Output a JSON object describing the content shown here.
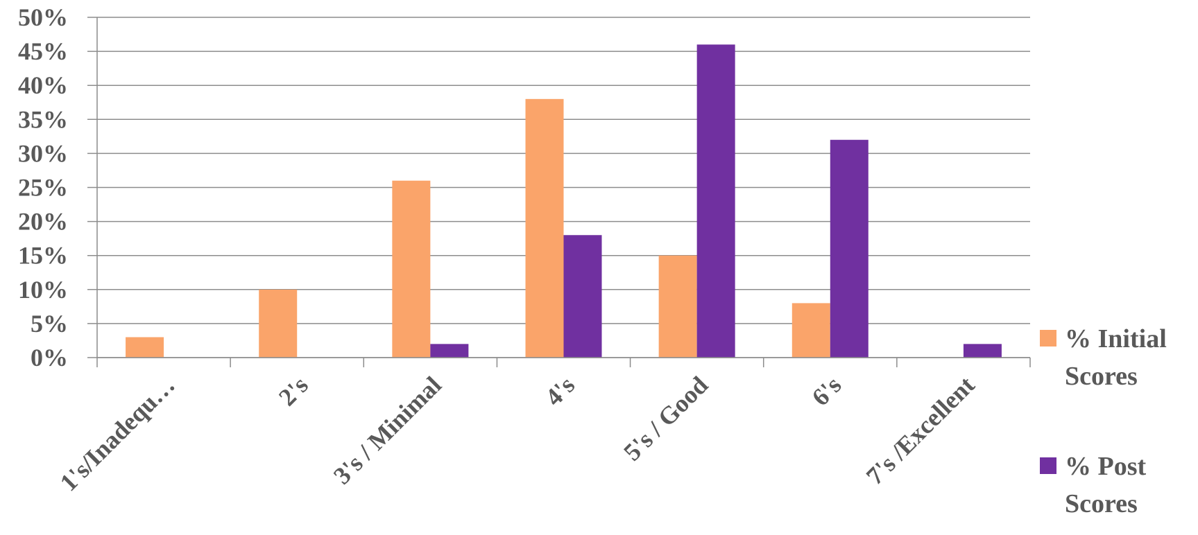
{
  "chart_data": {
    "type": "bar",
    "categories": [
      "1's/Inadequ…",
      "2's",
      "3's / Minimal",
      "4's",
      "5's / Good",
      "6's",
      "7's /Excellent"
    ],
    "series": [
      {
        "name": "% Initial Scores",
        "name_lines": [
          "% Initial",
          "Scores"
        ],
        "color": "#FAA46A",
        "values": [
          3,
          10,
          26,
          38,
          15,
          8,
          0
        ]
      },
      {
        "name": "% Post Scores",
        "name_lines": [
          "% Post",
          "Scores"
        ],
        "color": "#7030A0",
        "values": [
          0,
          0,
          2,
          18,
          46,
          32,
          2
        ]
      }
    ],
    "ylim": [
      0,
      50
    ],
    "yticks": [
      "0%",
      "5%",
      "10%",
      "15%",
      "20%",
      "25%",
      "30%",
      "35%",
      "40%",
      "45%",
      "50%"
    ],
    "grid": true,
    "legend_position": "right"
  }
}
